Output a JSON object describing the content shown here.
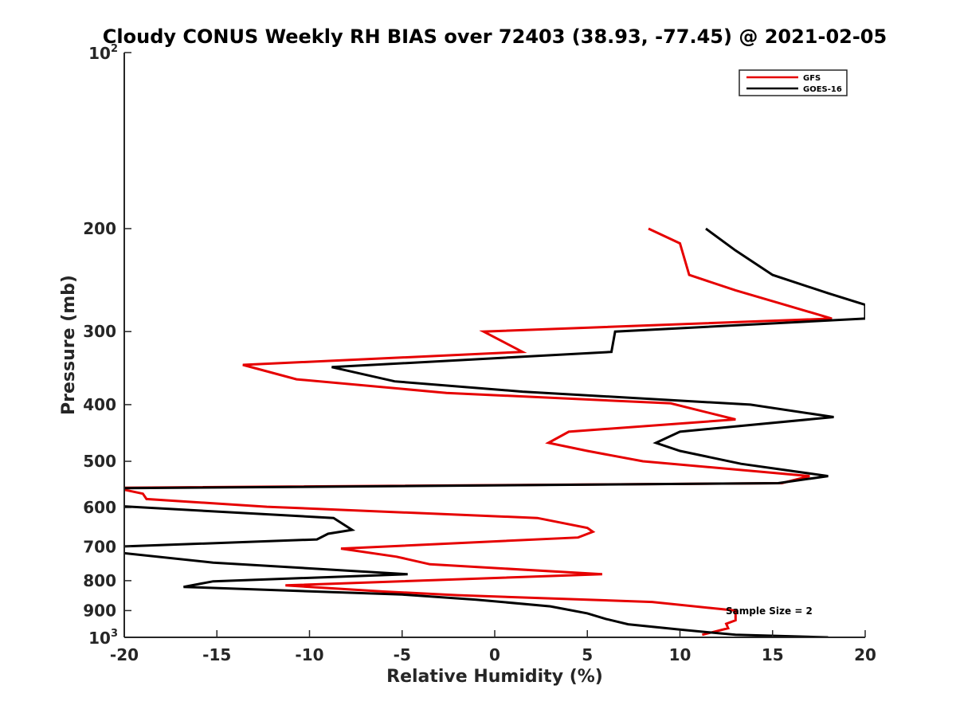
{
  "chart_data": {
    "type": "line",
    "title": "Cloudy CONUS Weekly RH BIAS over 72403 (38.93, -77.45) @ 2021-02-05",
    "xlabel": "Relative Humidity (%)",
    "ylabel": "Pressure (mb)",
    "xlim": [
      -20,
      20
    ],
    "ylim": [
      100,
      1000
    ],
    "yscale": "log",
    "y_reversed": true,
    "grid": false,
    "legend_position": "top-right",
    "x_ticks": [
      "-20",
      "-15",
      "-10",
      "-5",
      "0",
      "5",
      "10",
      "15",
      "20"
    ],
    "y_ticks_plain": [
      "200",
      "300",
      "400",
      "500",
      "600",
      "700",
      "800",
      "900"
    ],
    "y_ticks_power": [
      {
        "base": "10",
        "exp": "2",
        "value": 100
      },
      {
        "base": "10",
        "exp": "3",
        "value": 1000
      }
    ],
    "annotation": "Sample Size = 2",
    "series": [
      {
        "name": "GFS",
        "color": "#e60000",
        "points": [
          [
            8.3,
            200
          ],
          [
            10.0,
            212
          ],
          [
            10.5,
            240
          ],
          [
            13.0,
            255
          ],
          [
            18.2,
            285
          ],
          [
            -0.6,
            300
          ],
          [
            1.5,
            325
          ],
          [
            -13.6,
            342
          ],
          [
            -10.7,
            362
          ],
          [
            -2.6,
            382
          ],
          [
            9.5,
            398
          ],
          [
            13.0,
            424
          ],
          [
            4.0,
            445
          ],
          [
            2.9,
            465
          ],
          [
            5.0,
            480
          ],
          [
            8.0,
            500
          ],
          [
            17.0,
            530
          ],
          [
            15.5,
            545
          ],
          [
            -20.5,
            555
          ],
          [
            -19.0,
            568
          ],
          [
            -18.8,
            580
          ],
          [
            -12.3,
            598
          ],
          [
            2.3,
            625
          ],
          [
            5.0,
            650
          ],
          [
            5.3,
            660
          ],
          [
            4.5,
            675
          ],
          [
            -8.3,
            705
          ],
          [
            -5.3,
            728
          ],
          [
            -3.5,
            750
          ],
          [
            5.8,
            780
          ],
          [
            -11.3,
            815
          ],
          [
            -6.0,
            835
          ],
          [
            -2.0,
            847
          ],
          [
            8.5,
            870
          ],
          [
            13.0,
            900
          ],
          [
            13.0,
            935
          ],
          [
            12.5,
            948
          ],
          [
            12.6,
            965
          ],
          [
            11.2,
            990
          ]
        ]
      },
      {
        "name": "GOES-16",
        "color": "#000000",
        "points": [
          [
            11.4,
            200
          ],
          [
            13.0,
            218
          ],
          [
            15.0,
            240
          ],
          [
            18.0,
            258
          ],
          [
            20.0,
            270
          ],
          [
            20.0,
            285
          ],
          [
            6.5,
            300
          ],
          [
            6.3,
            325
          ],
          [
            -8.8,
            345
          ],
          [
            -5.4,
            365
          ],
          [
            1.5,
            380
          ],
          [
            13.8,
            400
          ],
          [
            18.3,
            420
          ],
          [
            10.0,
            445
          ],
          [
            8.7,
            465
          ],
          [
            10.0,
            480
          ],
          [
            13.3,
            505
          ],
          [
            18.0,
            530
          ],
          [
            15.3,
            545
          ],
          [
            -20.5,
            556
          ],
          [
            -20.5,
            596
          ],
          [
            -8.7,
            625
          ],
          [
            -7.7,
            655
          ],
          [
            -9.0,
            665
          ],
          [
            -9.6,
            680
          ],
          [
            -20.5,
            700
          ],
          [
            -20.5,
            715
          ],
          [
            -15.2,
            745
          ],
          [
            -4.7,
            780
          ],
          [
            -15.2,
            802
          ],
          [
            -16.8,
            820
          ],
          [
            -5.0,
            845
          ],
          [
            -1.0,
            862
          ],
          [
            3.0,
            885
          ],
          [
            5.0,
            910
          ],
          [
            6.0,
            930
          ],
          [
            7.2,
            950
          ],
          [
            10.0,
            970
          ],
          [
            13.0,
            990
          ],
          [
            18.0,
            1000
          ]
        ]
      }
    ]
  }
}
